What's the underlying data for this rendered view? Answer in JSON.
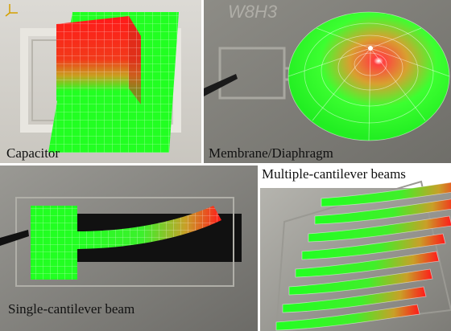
{
  "panels": {
    "capacitor": {
      "label": "Capacitor",
      "chip_marking": ""
    },
    "membrane": {
      "label": "Membrane/Diaphragm",
      "chip_marking": "W8H3"
    },
    "single_cantilever": {
      "label": "Single-cantilever beam"
    },
    "multi_cantilever": {
      "label": "Multiple-cantilever beams",
      "beam_count": 8
    }
  },
  "colors": {
    "deflection_high": "#ff1a1a",
    "deflection_low": "#22ff22",
    "mesh_lines": "#ffffff"
  },
  "axis_triad": {
    "axes": [
      "x",
      "y",
      "z"
    ]
  }
}
